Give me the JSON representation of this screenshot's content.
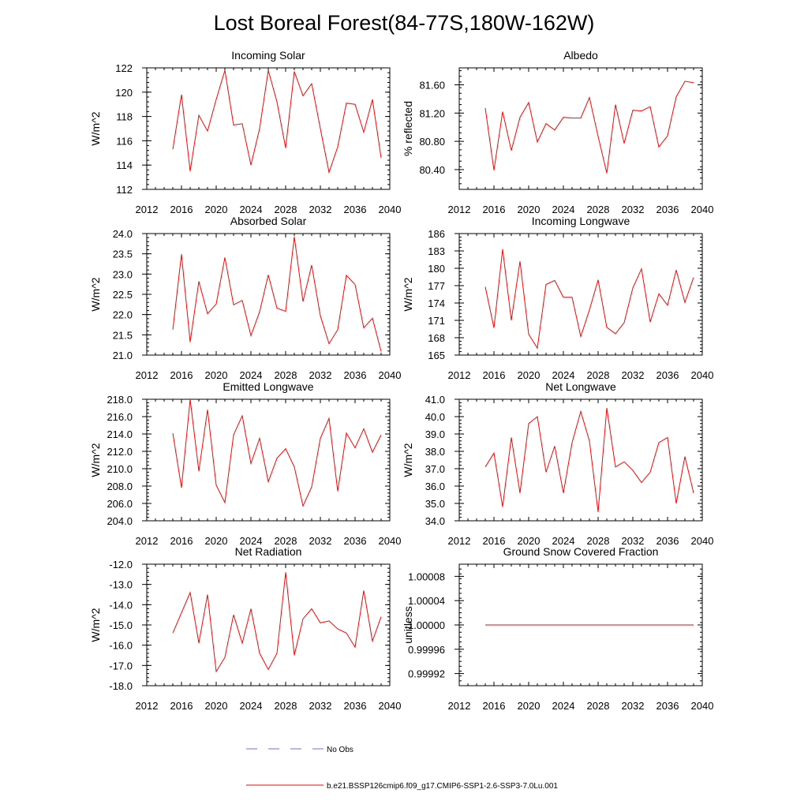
{
  "figure": {
    "title": "Lost Boreal Forest(84-77S,180W-162W)"
  },
  "legend": {
    "obs_label": "No Obs",
    "obs_color": "#6f6fd6",
    "model_label": "b.e21.BSSP126cmip6.f09_g17.CMIP6-SSP1-2.6-SSP3-7.0Lu.001",
    "model_color": "#ff0000"
  },
  "chart_data": [
    {
      "type": "line",
      "title": "Incoming Solar",
      "ylabel": "W/m^2",
      "xlim": [
        2012,
        2040
      ],
      "xticks": [
        "2012",
        "2016",
        "2020",
        "2024",
        "2028",
        "2032",
        "2036",
        "2040"
      ],
      "ylim": [
        112,
        122
      ],
      "yticks": [
        "112",
        "114",
        "116",
        "118",
        "120",
        "122"
      ],
      "x": [
        2015,
        2016,
        2017,
        2018,
        2019,
        2020,
        2021,
        2022,
        2023,
        2024,
        2025,
        2026,
        2027,
        2028,
        2029,
        2030,
        2031,
        2032,
        2033,
        2034,
        2035,
        2036,
        2037,
        2038,
        2039
      ],
      "series": [
        {
          "values": [
            115.3,
            119.8,
            113.5,
            118.1,
            116.8,
            119.4,
            121.8,
            117.3,
            117.4,
            114.0,
            117.0,
            121.8,
            119.2,
            115.4,
            121.7,
            119.7,
            120.7,
            117.0,
            113.4,
            115.5,
            119.1,
            119.0,
            116.7,
            119.4,
            114.6
          ],
          "color": "#ff0000"
        }
      ]
    },
    {
      "type": "line",
      "title": "Albedo",
      "ylabel": "% reflected",
      "xlim": [
        2012,
        2040
      ],
      "xticks": [
        "2012",
        "2016",
        "2020",
        "2024",
        "2028",
        "2032",
        "2036",
        "2040"
      ],
      "ylim": [
        80.12,
        81.84
      ],
      "yticks": [
        "80.40",
        "80.80",
        "81.20",
        "81.60"
      ],
      "ytick_values": [
        80.4,
        80.8,
        81.2,
        81.6
      ],
      "x": [
        2015,
        2016,
        2017,
        2018,
        2019,
        2020,
        2021,
        2022,
        2023,
        2024,
        2025,
        2026,
        2027,
        2028,
        2029,
        2030,
        2031,
        2032,
        2033,
        2034,
        2035,
        2036,
        2037,
        2038,
        2039
      ],
      "series": [
        {
          "values": [
            81.27,
            80.39,
            81.22,
            80.67,
            81.14,
            81.35,
            80.79,
            81.05,
            80.96,
            81.14,
            81.13,
            81.13,
            81.42,
            80.87,
            80.35,
            81.32,
            80.77,
            81.24,
            81.23,
            81.29,
            80.72,
            80.88,
            81.43,
            81.65,
            81.63
          ],
          "color": "#ff0000"
        }
      ]
    },
    {
      "type": "line",
      "title": "Absorbed Solar",
      "ylabel": "W/m^2",
      "xlim": [
        2012,
        2040
      ],
      "xticks": [
        "2012",
        "2016",
        "2020",
        "2024",
        "2028",
        "2032",
        "2036",
        "2040"
      ],
      "ylim": [
        21.0,
        24.0
      ],
      "yticks": [
        "21.0",
        "21.5",
        "22.0",
        "22.5",
        "23.0",
        "23.5",
        "24.0"
      ],
      "x": [
        2015,
        2016,
        2017,
        2018,
        2019,
        2020,
        2021,
        2022,
        2023,
        2024,
        2025,
        2026,
        2027,
        2028,
        2029,
        2030,
        2031,
        2032,
        2033,
        2034,
        2035,
        2036,
        2037,
        2038,
        2039
      ],
      "series": [
        {
          "values": [
            21.63,
            23.49,
            21.32,
            22.82,
            22.02,
            22.26,
            23.41,
            22.24,
            22.35,
            21.48,
            22.07,
            22.98,
            22.16,
            22.08,
            23.92,
            22.32,
            23.22,
            21.97,
            21.28,
            21.63,
            22.97,
            22.74,
            21.67,
            21.91,
            21.09
          ],
          "color": "#ff0000"
        }
      ]
    },
    {
      "type": "line",
      "title": "Incoming Longwave",
      "ylabel": "W/m^2",
      "xlim": [
        2012,
        2040
      ],
      "xticks": [
        "2012",
        "2016",
        "2020",
        "2024",
        "2028",
        "2032",
        "2036",
        "2040"
      ],
      "ylim": [
        165,
        186
      ],
      "yticks": [
        "165",
        "168",
        "171",
        "174",
        "177",
        "180",
        "183",
        "186"
      ],
      "x": [
        2015,
        2016,
        2017,
        2018,
        2019,
        2020,
        2021,
        2022,
        2023,
        2024,
        2025,
        2026,
        2027,
        2028,
        2029,
        2030,
        2031,
        2032,
        2033,
        2034,
        2035,
        2036,
        2037,
        2038,
        2039
      ],
      "series": [
        {
          "values": [
            176.8,
            169.7,
            183.3,
            171.0,
            181.2,
            168.6,
            166.2,
            177.2,
            177.9,
            175.0,
            175.0,
            168.2,
            172.8,
            178.0,
            169.8,
            168.7,
            170.6,
            176.6,
            179.9,
            170.7,
            175.6,
            173.6,
            179.7,
            174.1,
            178.4
          ],
          "color": "#ff0000"
        }
      ]
    },
    {
      "type": "line",
      "title": "Emitted Longwave",
      "ylabel": "W/m^2",
      "xlim": [
        2012,
        2040
      ],
      "xticks": [
        "2012",
        "2016",
        "2020",
        "2024",
        "2028",
        "2032",
        "2036",
        "2040"
      ],
      "ylim": [
        204,
        218
      ],
      "yticks": [
        "204.0",
        "206.0",
        "208.0",
        "210.0",
        "212.0",
        "214.0",
        "216.0",
        "218.0"
      ],
      "x": [
        2015,
        2016,
        2017,
        2018,
        2019,
        2020,
        2021,
        2022,
        2023,
        2024,
        2025,
        2026,
        2027,
        2028,
        2029,
        2030,
        2031,
        2032,
        2033,
        2034,
        2035,
        2036,
        2037,
        2038,
        2039
      ],
      "series": [
        {
          "values": [
            214.1,
            207.8,
            218.0,
            209.7,
            216.8,
            208.1,
            206.1,
            213.9,
            216.1,
            210.6,
            213.5,
            208.5,
            211.2,
            212.3,
            210.2,
            205.7,
            207.9,
            213.5,
            215.8,
            207.4,
            214.1,
            212.4,
            214.6,
            211.9,
            213.9
          ],
          "color": "#ff0000"
        }
      ]
    },
    {
      "type": "line",
      "title": "Net Longwave",
      "ylabel": "W/m^2",
      "xlim": [
        2012,
        2040
      ],
      "xticks": [
        "2012",
        "2016",
        "2020",
        "2024",
        "2028",
        "2032",
        "2036",
        "2040"
      ],
      "ylim": [
        34,
        41
      ],
      "yticks": [
        "34.0",
        "35.0",
        "36.0",
        "37.0",
        "38.0",
        "39.0",
        "40.0",
        "41.0"
      ],
      "x": [
        2015,
        2016,
        2017,
        2018,
        2019,
        2020,
        2021,
        2022,
        2023,
        2024,
        2025,
        2026,
        2027,
        2028,
        2029,
        2030,
        2031,
        2032,
        2033,
        2034,
        2035,
        2036,
        2037,
        2038,
        2039
      ],
      "series": [
        {
          "values": [
            37.1,
            37.9,
            34.8,
            38.8,
            35.6,
            39.6,
            40.0,
            36.8,
            38.3,
            35.6,
            38.5,
            40.3,
            38.6,
            34.5,
            40.5,
            37.1,
            37.4,
            36.9,
            36.2,
            36.8,
            38.5,
            38.8,
            35.0,
            37.7,
            35.6
          ],
          "color": "#ff0000"
        }
      ]
    },
    {
      "type": "line",
      "title": "Net Radiation",
      "ylabel": "W/m^2",
      "xlim": [
        2012,
        2040
      ],
      "xticks": [
        "2012",
        "2016",
        "2020",
        "2024",
        "2028",
        "2032",
        "2036",
        "2040"
      ],
      "ylim": [
        -18,
        -12
      ],
      "yticks": [
        "-18.0",
        "-17.0",
        "-16.0",
        "-15.0",
        "-14.0",
        "-13.0",
        "-12.0"
      ],
      "x": [
        2015,
        2016,
        2017,
        2018,
        2019,
        2020,
        2021,
        2022,
        2023,
        2024,
        2025,
        2026,
        2027,
        2028,
        2029,
        2030,
        2031,
        2032,
        2033,
        2034,
        2035,
        2036,
        2037,
        2038,
        2039
      ],
      "series": [
        {
          "values": [
            -15.4,
            -14.4,
            -13.4,
            -15.9,
            -13.5,
            -17.3,
            -16.6,
            -14.5,
            -15.9,
            -14.2,
            -16.4,
            -17.2,
            -16.4,
            -12.4,
            -16.5,
            -14.7,
            -14.2,
            -14.9,
            -14.8,
            -15.2,
            -15.4,
            -16.1,
            -13.3,
            -15.8,
            -14.6
          ],
          "color": "#ff0000"
        }
      ]
    },
    {
      "type": "line",
      "title": "Ground Snow Covered Fraction",
      "ylabel": "unitless",
      "xlim": [
        2012,
        2040
      ],
      "xticks": [
        "2012",
        "2016",
        "2020",
        "2024",
        "2028",
        "2032",
        "2036",
        "2040"
      ],
      "ylim": [
        0.9999,
        1.0001
      ],
      "yticks": [
        "0.99992",
        "0.99996",
        "1.00000",
        "1.00004",
        "1.00008"
      ],
      "ytick_values": [
        0.99992,
        0.99996,
        1.0,
        1.00004,
        1.00008
      ],
      "x": [
        2015,
        2016,
        2017,
        2018,
        2019,
        2020,
        2021,
        2022,
        2023,
        2024,
        2025,
        2026,
        2027,
        2028,
        2029,
        2030,
        2031,
        2032,
        2033,
        2034,
        2035,
        2036,
        2037,
        2038,
        2039
      ],
      "series": [
        {
          "values": [
            1,
            1,
            1,
            1,
            1,
            1,
            1,
            1,
            1,
            1,
            1,
            1,
            1,
            1,
            1,
            1,
            1,
            1,
            1,
            1,
            1,
            1,
            1,
            1,
            1
          ],
          "color": "#ff0000"
        }
      ]
    }
  ]
}
